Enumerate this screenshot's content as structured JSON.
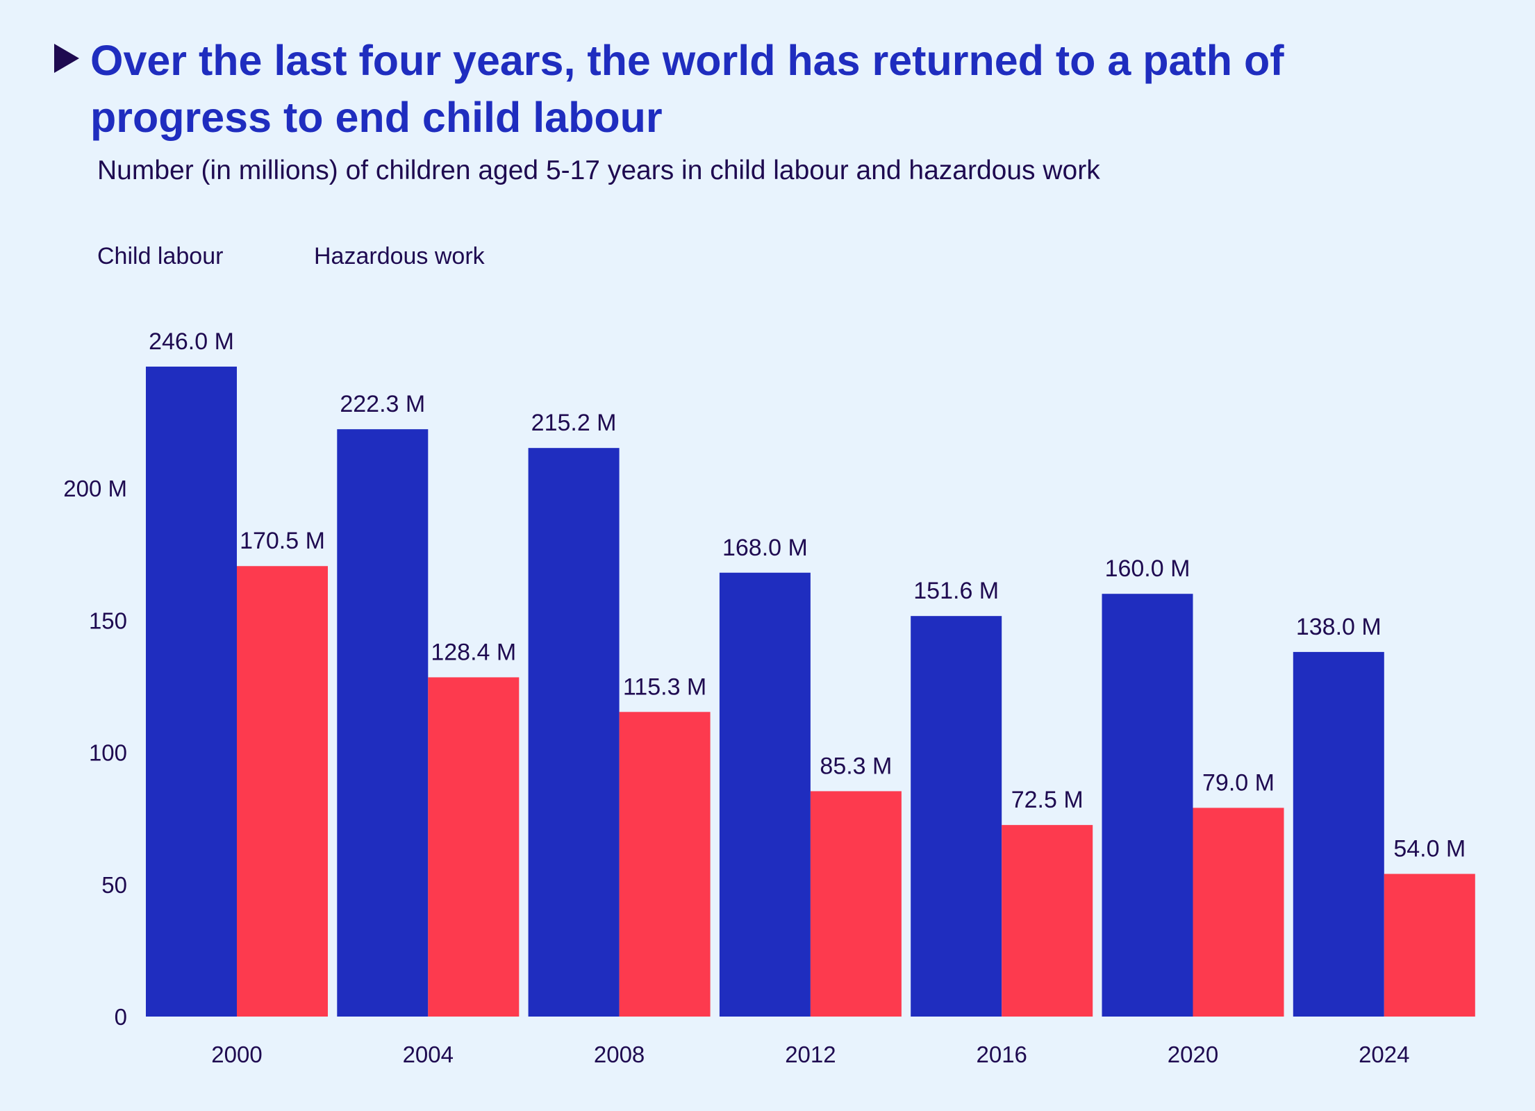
{
  "header": {
    "title": "Over the last four years, the world has returned to a path of progress to end child labour",
    "subtitle": "Number (in millions) of children aged 5-17 years in child labour and hazardous work",
    "title_icon": "triangle-right-icon"
  },
  "legend": [
    {
      "label": "Child labour",
      "color": "#1f2dbf"
    },
    {
      "label": "Hazardous work",
      "color": "#fd3a4e"
    }
  ],
  "chart_data": {
    "type": "bar",
    "title": "Over the last four years, the world has returned to a path of progress to end child labour",
    "subtitle": "Number (in millions) of children aged 5-17 years in child labour and hazardous work",
    "xlabel": "",
    "ylabel": "",
    "categories": [
      "2000",
      "2004",
      "2008",
      "2012",
      "2016",
      "2020",
      "2024"
    ],
    "series": [
      {
        "name": "Child labour",
        "color": "#1f2dbf",
        "values": [
          246.0,
          222.3,
          215.2,
          168.0,
          151.6,
          160.0,
          138.0
        ],
        "labels": [
          "246.0 M",
          "222.3 M",
          "215.2 M",
          "168.0 M",
          "151.6 M",
          "160.0 M",
          "138.0 M"
        ]
      },
      {
        "name": "Hazardous work",
        "color": "#fd3a4e",
        "values": [
          170.5,
          128.4,
          115.3,
          85.3,
          72.5,
          79.0,
          54.0
        ],
        "labels": [
          "170.5 M",
          "128.4 M",
          "115.3 M",
          "85.3 M",
          "72.5 M",
          "79.0 M",
          "54.0 M"
        ]
      }
    ],
    "yticks": [
      0,
      50,
      100,
      150,
      200
    ],
    "ytick_labels": [
      "0",
      "50",
      "100",
      "150",
      "200 M"
    ],
    "ylim": [
      0,
      250
    ],
    "grid": false,
    "legend_position": "top-left"
  }
}
